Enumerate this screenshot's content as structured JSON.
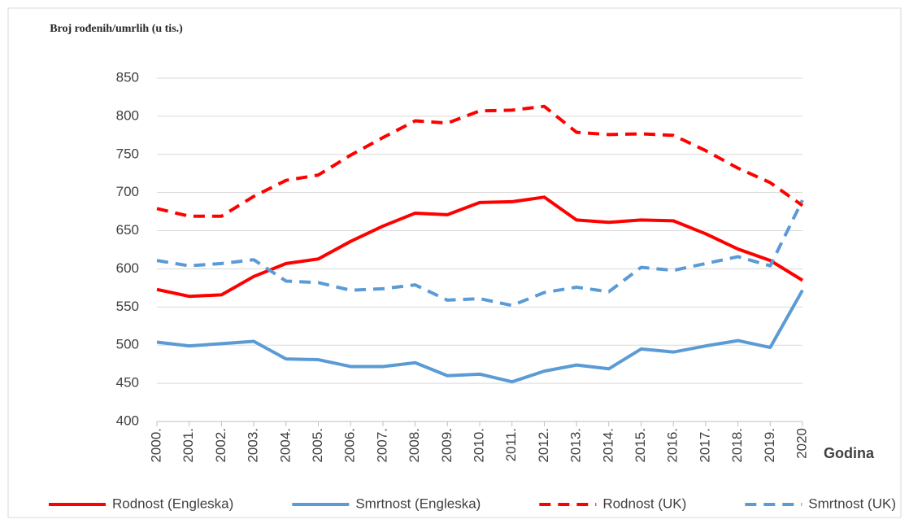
{
  "chart_data": {
    "type": "line",
    "y_axis_label": "Broj rođenih/umrlih (u tis.)",
    "x_axis_label": "Godina",
    "categories": [
      "2000.",
      "2001.",
      "2002.",
      "2003.",
      "2004.",
      "2005.",
      "2006.",
      "2007.",
      "2008.",
      "2009.",
      "2010.",
      "2011.",
      "2012.",
      "2013.",
      "2014.",
      "2015.",
      "2016.",
      "2017.",
      "2018.",
      "2019.",
      "2020"
    ],
    "series": [
      {
        "name": "Rodnost (Engleska)",
        "color": "#ff0000",
        "style": "solid",
        "values": [
          573,
          564,
          566,
          590,
          607,
          613,
          636,
          656,
          673,
          671,
          687,
          688,
          694,
          664,
          661,
          664,
          663,
          646,
          626,
          611,
          585
        ]
      },
      {
        "name": "Smrtnost (Engleska)",
        "color": "#5b9bd5",
        "style": "solid",
        "values": [
          504,
          499,
          502,
          505,
          482,
          481,
          472,
          472,
          477,
          460,
          462,
          452,
          466,
          474,
          469,
          495,
          491,
          499,
          506,
          497,
          572
        ]
      },
      {
        "name": "Rodnost (UK)",
        "color": "#ff0000",
        "style": "dashed",
        "values": [
          679,
          669,
          669,
          695,
          716,
          723,
          749,
          772,
          794,
          791,
          807,
          808,
          813,
          779,
          776,
          777,
          775,
          755,
          732,
          713,
          683
        ]
      },
      {
        "name": "Smrtnost (UK)",
        "color": "#5b9bd5",
        "style": "dashed",
        "values": [
          611,
          604,
          607,
          612,
          584,
          582,
          572,
          574,
          579,
          559,
          561,
          552,
          569,
          576,
          570,
          602,
          598,
          607,
          616,
          604,
          690
        ]
      }
    ],
    "ylim": [
      400,
      850
    ],
    "yticks": [
      400,
      450,
      500,
      550,
      600,
      650,
      700,
      750,
      800,
      850
    ],
    "grid": true,
    "legend": "bottom"
  }
}
